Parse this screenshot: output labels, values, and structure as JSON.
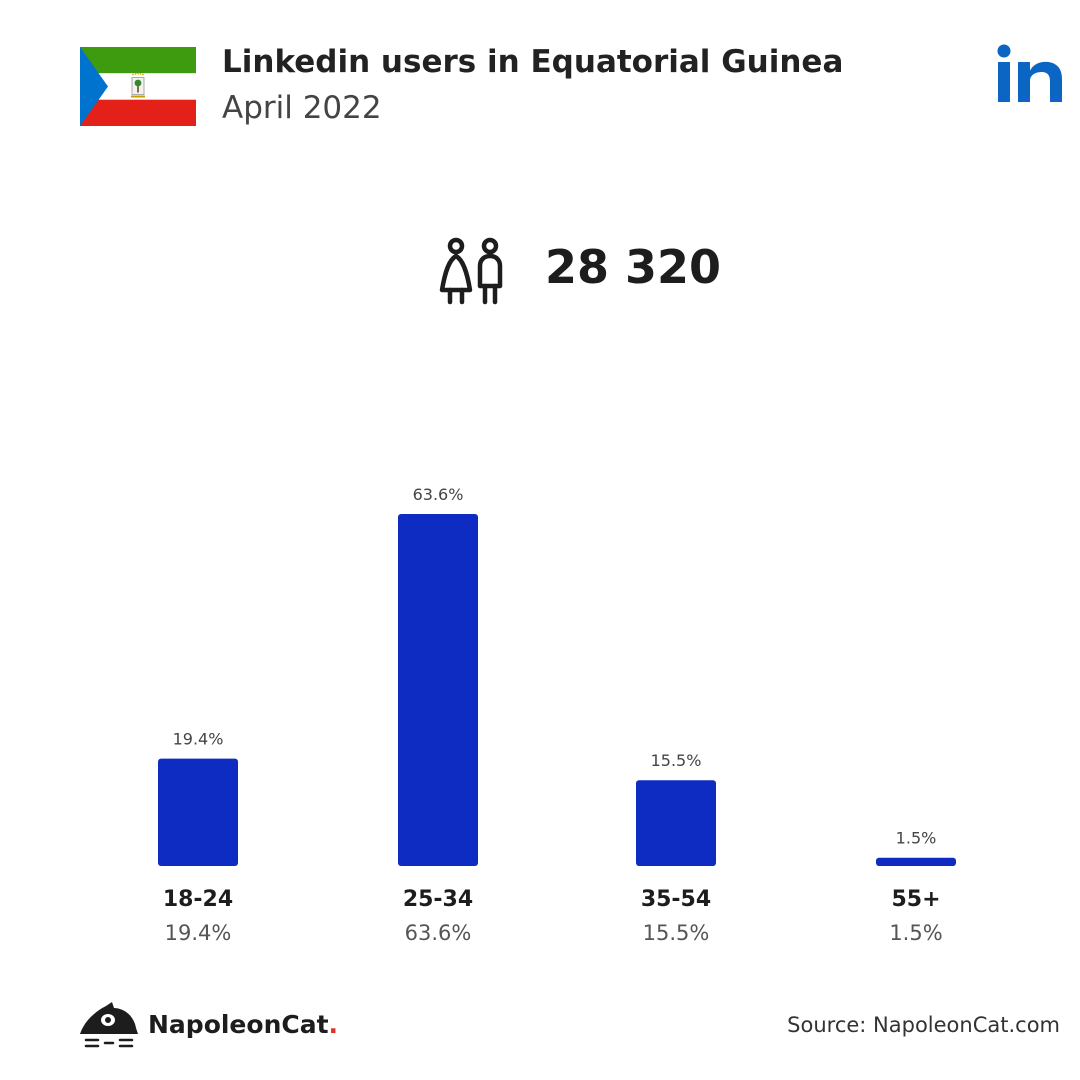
{
  "header": {
    "title": "Linkedin users in Equatorial Guinea",
    "subtitle": "April 2022"
  },
  "total_users": "28 320",
  "colors": {
    "bar": "#0f2cc2",
    "linkedin": "#0a66c2",
    "flag_green": "#3e9a0f",
    "flag_white": "#ffffff",
    "flag_red": "#e32118",
    "flag_blue": "#0073ce",
    "brand_dot": "#e0322a"
  },
  "icons": [
    "equatorial-guinea-flag-icon",
    "linkedin-logo-icon",
    "users-icon",
    "napoleoncat-logo-icon"
  ],
  "chart_data": {
    "type": "bar",
    "categories": [
      "18-24",
      "25-34",
      "35-54",
      "55+"
    ],
    "values": [
      19.4,
      63.6,
      15.5,
      1.5
    ],
    "value_labels": [
      "19.4%",
      "63.6%",
      "15.5%",
      "1.5%"
    ],
    "category_subvalues": [
      "19.4%",
      "63.6%",
      "15.5%",
      "1.5%"
    ],
    "unit": "%",
    "ylim": [
      0,
      63.6
    ],
    "grid": false
  },
  "footer": {
    "brand_name": "NapoleonCat",
    "brand_dot": ".",
    "source": "Source: NapoleonCat.com"
  }
}
